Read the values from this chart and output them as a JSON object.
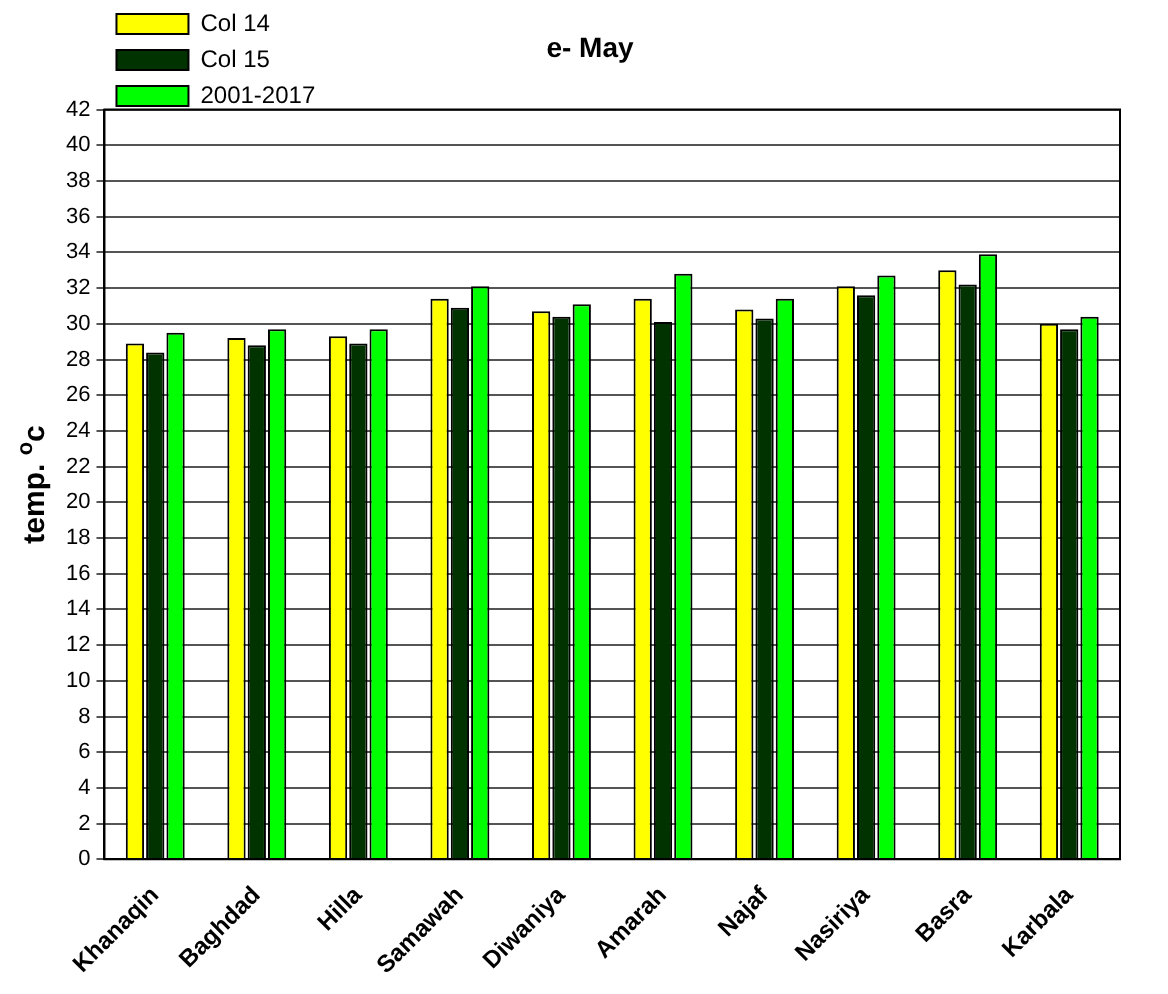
{
  "chart_data": {
    "type": "bar",
    "title": "e- May",
    "ylabel": "temp. $^{o}$c",
    "categories": [
      "Khanaqin",
      "Baghdad",
      "Hilla",
      "Samawah",
      "Diwaniya",
      "Amarah",
      "Najaf",
      "Nasiriya",
      "Basra",
      "Karbala"
    ],
    "series": [
      {
        "name": "Col 14",
        "color": "#ffff00",
        "values": [
          28.9,
          29.2,
          29.3,
          31.4,
          30.7,
          31.4,
          30.8,
          32.1,
          33.0,
          30.0
        ]
      },
      {
        "name": "Col 15",
        "color": "#003300",
        "values": [
          28.4,
          28.8,
          28.9,
          30.9,
          30.4,
          30.1,
          30.3,
          31.6,
          32.2,
          29.7
        ]
      },
      {
        "name": "2001-2017",
        "color": "#00ff00",
        "values": [
          29.5,
          29.7,
          29.7,
          32.1,
          31.1,
          32.8,
          31.4,
          32.7,
          33.9,
          30.4
        ]
      }
    ],
    "ylim": [
      0,
      42
    ],
    "yticks": [
      0,
      2,
      4,
      6,
      8,
      10,
      12,
      14,
      16,
      18,
      20,
      22,
      24,
      26,
      28,
      30,
      32,
      34,
      36,
      38,
      40,
      42
    ],
    "grid": "y",
    "legend": "top left"
  }
}
